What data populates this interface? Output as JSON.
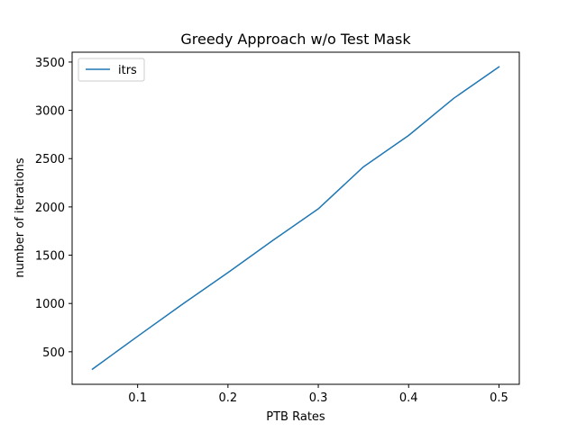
{
  "chart_data": {
    "type": "line",
    "title": "Greedy Approach w/o Test Mask",
    "xlabel": "PTB Rates",
    "ylabel": "number of iterations",
    "xlim": [
      0.0275,
      0.5225
    ],
    "ylim": [
      163,
      3602
    ],
    "xticks": [
      0.1,
      0.2,
      0.3,
      0.4,
      0.5
    ],
    "xtick_labels": [
      "0.1",
      "0.2",
      "0.3",
      "0.4",
      "0.5"
    ],
    "yticks": [
      500,
      1000,
      1500,
      2000,
      2500,
      3000,
      3500
    ],
    "ytick_labels": [
      "500",
      "1000",
      "1500",
      "2000",
      "2500",
      "3000",
      "3500"
    ],
    "grid": false,
    "legend_position": "upper left",
    "series": [
      {
        "name": "itrs",
        "color": "#1f77b4",
        "x": [
          0.05,
          0.1,
          0.15,
          0.2,
          0.25,
          0.3,
          0.35,
          0.4,
          0.45,
          0.5
        ],
        "y": [
          320,
          660,
          995,
          1320,
          1655,
          1980,
          2415,
          2740,
          3125,
          3450
        ]
      }
    ]
  }
}
